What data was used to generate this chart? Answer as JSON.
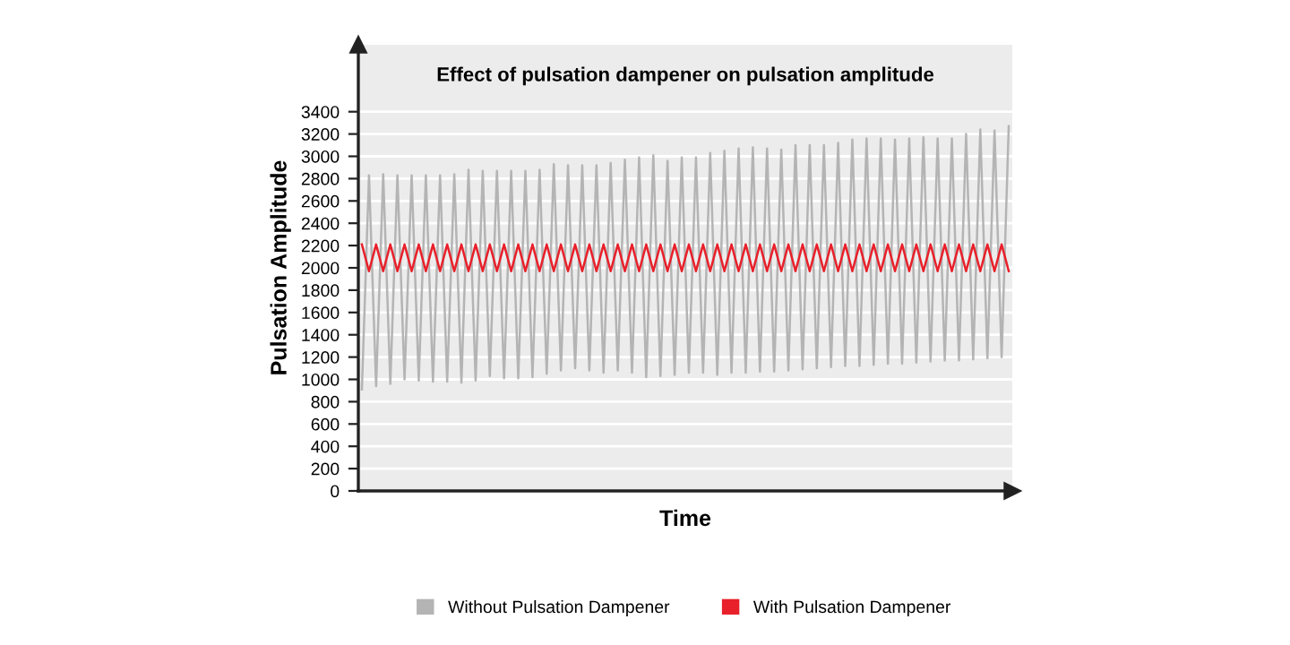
{
  "chart_data": {
    "type": "line",
    "title": "Effect of pulsation dampener on pulsation amplitude",
    "xlabel": "Time",
    "ylabel": "Pulsation Amplitude",
    "categories": [
      null,
      null,
      null,
      null,
      null,
      null,
      null,
      null,
      null,
      null,
      null,
      null,
      null,
      null,
      null,
      null,
      null,
      null,
      null,
      null,
      null,
      null,
      null,
      null,
      null,
      null,
      null,
      null,
      null,
      null,
      null,
      null,
      null,
      null,
      null,
      null,
      null,
      null,
      null,
      null,
      null,
      null,
      null,
      null,
      null,
      null,
      null,
      null,
      null,
      null,
      null,
      null,
      null,
      null,
      null,
      null,
      null,
      null,
      null,
      null,
      null,
      null,
      null,
      null,
      null,
      null,
      null,
      null,
      null,
      null,
      null,
      null,
      null,
      null,
      null,
      null,
      null,
      null,
      null,
      null,
      null,
      null,
      null,
      null,
      null,
      null,
      null,
      null,
      null,
      null,
      null,
      null
    ],
    "series": [
      {
        "name": "Without Pulsation Dampener",
        "color": "#b4b4b4",
        "values": [
          910,
          2830,
          940,
          2840,
          960,
          2830,
          1000,
          2830,
          990,
          2830,
          980,
          2830,
          980,
          2840,
          970,
          2880,
          990,
          2870,
          1030,
          2870,
          1010,
          2870,
          1010,
          2870,
          1020,
          2880,
          1050,
          2930,
          1080,
          2920,
          1100,
          2920,
          1080,
          2920,
          1060,
          2940,
          1080,
          2970,
          1060,
          2990,
          1020,
          3010,
          1030,
          2960,
          1040,
          2990,
          1060,
          2990,
          1060,
          3030,
          1040,
          3050,
          1060,
          3070,
          1060,
          3080,
          1070,
          3070,
          1070,
          3060,
          1080,
          3100,
          1090,
          3100,
          1100,
          3100,
          1110,
          3120,
          1120,
          3150,
          1120,
          3160,
          1130,
          3160,
          1140,
          3150,
          1140,
          3160,
          1150,
          3170,
          1160,
          3160,
          1170,
          3160,
          1170,
          3200,
          1180,
          3240,
          1190,
          3230,
          1200,
          3270
        ]
      },
      {
        "name": "With Pulsation Dampener",
        "color": "#e8202a",
        "values": [
          2210,
          1970,
          2210,
          1970,
          2210,
          1970,
          2210,
          1970,
          2210,
          1970,
          2210,
          1970,
          2210,
          1970,
          2210,
          1970,
          2210,
          1970,
          2210,
          1970,
          2210,
          1970,
          2210,
          1970,
          2210,
          1970,
          2210,
          1970,
          2210,
          1970,
          2210,
          1970,
          2210,
          1970,
          2210,
          1970,
          2210,
          1970,
          2210,
          1970,
          2210,
          1970,
          2210,
          1970,
          2210,
          1970,
          2210,
          1970,
          2210,
          1970,
          2210,
          1970,
          2210,
          1970,
          2210,
          1970,
          2210,
          1970,
          2210,
          1970,
          2210,
          1970,
          2210,
          1970,
          2210,
          1970,
          2210,
          1970,
          2210,
          1970,
          2210,
          1970,
          2210,
          1970,
          2210,
          1970,
          2210,
          1970,
          2210,
          1970,
          2210,
          1970,
          2210,
          1970,
          2210,
          1970,
          2210,
          1970,
          2210,
          1970,
          2210,
          1970
        ]
      }
    ],
    "ylim": [
      0,
      4000
    ],
    "yticks": [
      0,
      200,
      400,
      600,
      800,
      1000,
      1200,
      1400,
      1600,
      1800,
      2000,
      2200,
      2400,
      2600,
      2800,
      3000,
      3200,
      3400
    ],
    "grid": "y",
    "legend": "bottom",
    "marker": "none",
    "line_style": "solid"
  }
}
